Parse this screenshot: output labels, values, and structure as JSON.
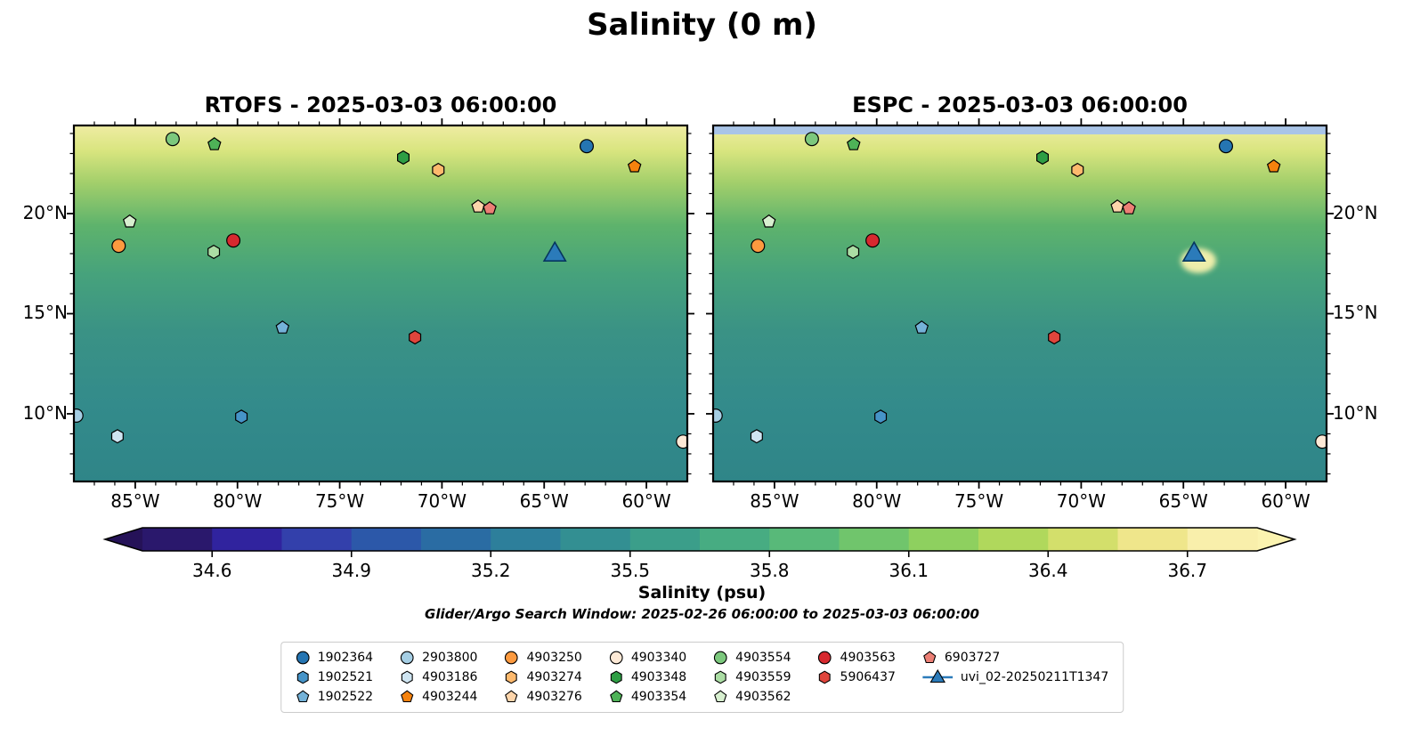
{
  "figure": {
    "title": "Salinity (0 m)",
    "subtitle": "Glider/Argo Search Window: 2025-02-26 06:00:00 to 2025-03-03 06:00:00"
  },
  "panels": [
    {
      "id": "rtofs",
      "title": "RTOFS - 2025-03-03 06:00:00",
      "top_band": false
    },
    {
      "id": "espc",
      "title": "ESPC - 2025-03-03 06:00:00",
      "top_band": true
    }
  ],
  "axes": {
    "x_tick_labels": [
      "85°W",
      "80°W",
      "75°W",
      "70°W",
      "65°W",
      "60°W"
    ],
    "y_tick_labels": [
      "20°N",
      "15°N",
      "10°N"
    ]
  },
  "colorbar": {
    "label": "Salinity (psu)",
    "tick_labels": [
      "34.6",
      "34.9",
      "35.2",
      "35.5",
      "35.8",
      "36.1",
      "36.4",
      "36.7"
    ],
    "segment_colors": [
      "#2a186c",
      "#30239e",
      "#3340ab",
      "#2c58a9",
      "#2a6ca3",
      "#2d7f9b",
      "#338f92",
      "#3b9e8a",
      "#47ac82",
      "#58b979",
      "#70c56c",
      "#8ed05f",
      "#b0d85c",
      "#d3df6b",
      "#efe68b",
      "#f9efab"
    ],
    "left_arrow_color": "#251258",
    "right_arrow_color": "#fbf3b0"
  },
  "map_colors": {
    "land": "#d9bf98",
    "coastline": "#000000",
    "deep_ocean": "#2b1f77",
    "river": "#a9c6e8",
    "espc_top_band": "#a9c4e7"
  },
  "legend": {
    "columns": [
      [
        "1902364",
        "1902521",
        "1902522"
      ],
      [
        "2903800",
        "4903186",
        "4903244"
      ],
      [
        "4903250",
        "4903274",
        "4903276"
      ],
      [
        "4903340",
        "4903348",
        "4903354"
      ],
      [
        "4903554",
        "4903559",
        "4903562"
      ],
      [
        "4903563",
        "5906437"
      ],
      [
        "6903727",
        "uvi_02-20250211T1347"
      ]
    ]
  },
  "chart_data": {
    "type": "heatmap",
    "title": "Salinity (0 m)",
    "variable": "Salinity (psu)",
    "subplots": [
      "RTOFS - 2025-03-03 06:00:00",
      "ESPC - 2025-03-03 06:00:00"
    ],
    "colorbar_ticks": [
      34.6,
      34.9,
      35.2,
      35.5,
      35.8,
      36.1,
      36.4,
      36.7
    ],
    "colorbar_extends": "both",
    "lon_ticks": [
      "85°W",
      "80°W",
      "75°W",
      "70°W",
      "65°W",
      "60°W"
    ],
    "lat_ticks": [
      "20°N",
      "15°N",
      "10°N"
    ],
    "annotation": "Glider/Argo Search Window: 2025-02-26 06:00:00 to 2025-03-03 06:00:00",
    "platforms": [
      {
        "id": "1902364",
        "marker": "circle",
        "color": "#2575b2",
        "lon_approx": -62.9,
        "lat_approx": 23.4,
        "fx": 0.836,
        "fy": 0.058
      },
      {
        "id": "1902521",
        "marker": "hexagon",
        "color": "#4694c8",
        "lon_approx": -79.8,
        "lat_approx": 9.8,
        "fx": 0.273,
        "fy": 0.818
      },
      {
        "id": "1902522",
        "marker": "pentagon",
        "color": "#74b2d8",
        "lon_approx": -77.8,
        "lat_approx": 14.3,
        "fx": 0.34,
        "fy": 0.568
      },
      {
        "id": "2903800",
        "marker": "circle",
        "color": "#a5cee4",
        "lon_approx": -87.9,
        "lat_approx": 9.9,
        "fx": 0.004,
        "fy": 0.815
      },
      {
        "id": "4903186",
        "marker": "hexagon",
        "color": "#cfe5f2",
        "lon_approx": -85.9,
        "lat_approx": 8.9,
        "fx": 0.071,
        "fy": 0.873
      },
      {
        "id": "4903244",
        "marker": "pentagon",
        "color": "#f5820d",
        "lon_approx": -60.6,
        "lat_approx": 22.4,
        "fx": 0.914,
        "fy": 0.115
      },
      {
        "id": "4903250",
        "marker": "circle",
        "color": "#fd9a3f",
        "lon_approx": -85.8,
        "lat_approx": 18.4,
        "fx": 0.073,
        "fy": 0.338
      },
      {
        "id": "4903274",
        "marker": "hexagon",
        "color": "#fdb96d",
        "lon_approx": -70.2,
        "lat_approx": 22.2,
        "fx": 0.594,
        "fy": 0.125
      },
      {
        "id": "4903276",
        "marker": "pentagon",
        "color": "#fdd5ab",
        "lon_approx": -68.2,
        "lat_approx": 20.3,
        "fx": 0.659,
        "fy": 0.228
      },
      {
        "id": "4903340",
        "marker": "circle",
        "color": "#fde9d6",
        "lon_approx": -58.2,
        "lat_approx": 8.6,
        "fx": 0.993,
        "fy": 0.888
      },
      {
        "id": "4903348",
        "marker": "hexagon",
        "color": "#2e9e44",
        "lon_approx": -71.9,
        "lat_approx": 22.8,
        "fx": 0.537,
        "fy": 0.09
      },
      {
        "id": "4903354",
        "marker": "pentagon",
        "color": "#4eb257",
        "lon_approx": -81.1,
        "lat_approx": 23.5,
        "fx": 0.229,
        "fy": 0.053
      },
      {
        "id": "4903554",
        "marker": "circle",
        "color": "#7cc87d",
        "lon_approx": -83.2,
        "lat_approx": 23.7,
        "fx": 0.161,
        "fy": 0.038
      },
      {
        "id": "4903559",
        "marker": "hexagon",
        "color": "#abdda4",
        "lon_approx": -81.2,
        "lat_approx": 18.1,
        "fx": 0.228,
        "fy": 0.355
      },
      {
        "id": "4903562",
        "marker": "pentagon",
        "color": "#d7efcf",
        "lon_approx": -85.3,
        "lat_approx": 19.6,
        "fx": 0.091,
        "fy": 0.27
      },
      {
        "id": "4903563",
        "marker": "circle",
        "color": "#d7292f",
        "lon_approx": -80.2,
        "lat_approx": 18.7,
        "fx": 0.26,
        "fy": 0.323
      },
      {
        "id": "5906437",
        "marker": "hexagon",
        "color": "#e0453c",
        "lon_approx": -71.3,
        "lat_approx": 13.8,
        "fx": 0.556,
        "fy": 0.595
      },
      {
        "id": "6903727",
        "marker": "pentagon",
        "color": "#ec7f75",
        "lon_approx": -67.7,
        "lat_approx": 20.3,
        "fx": 0.678,
        "fy": 0.233
      },
      {
        "id": "uvi_02-20250211T1347",
        "marker": "triangle",
        "color": "#2b7bba",
        "lon_approx": -64.5,
        "lat_approx": 17.9,
        "fx": 0.784,
        "fy": 0.363
      }
    ]
  }
}
